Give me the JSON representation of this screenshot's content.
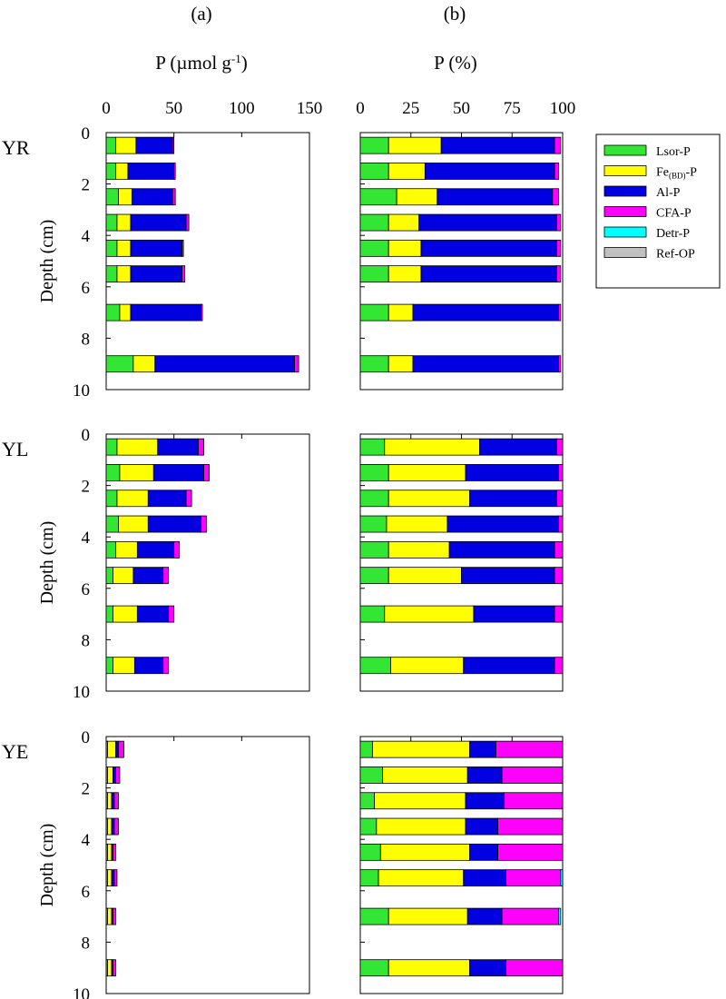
{
  "figure": {
    "panel_a_label": "(a)",
    "panel_b_label": "(b)",
    "title_a": "P (µmol g-1)",
    "title_a_main": "P (",
    "title_a_unit": "µmol g",
    "title_a_exp": "-1",
    "title_a_close": ")",
    "title_b": "P (%)",
    "depth_label": "Depth (cm)",
    "legend_labels": [
      "Lsor-P",
      "Fe(BD)-P",
      "Al-P",
      "CFA-P",
      "Detr-P",
      "Ref-OP"
    ],
    "legend_fe_main": "Fe",
    "legend_fe_sub": "(BD)",
    "legend_fe_tail": "-P"
  },
  "chart_data": {
    "type": "bar",
    "orientation": "horizontal-stacked",
    "fractions": [
      {
        "name": "Lsor-P",
        "color": "#33e633"
      },
      {
        "name": "Fe(BD)-P",
        "color": "#ffff00"
      },
      {
        "name": "Al-P",
        "color": "#0000e0"
      },
      {
        "name": "CFA-P",
        "color": "#ff00ff"
      },
      {
        "name": "Detr-P",
        "color": "#00ffff"
      },
      {
        "name": "Ref-OP",
        "color": "#c0c0c0"
      }
    ],
    "axes": {
      "absolute": {
        "xlim": [
          0,
          150
        ],
        "ticks": [
          "0",
          "50",
          "100",
          "150"
        ],
        "tick_values": [
          0,
          50,
          100,
          150
        ]
      },
      "percent": {
        "xlim": [
          0,
          100
        ],
        "ticks": [
          "0",
          "25",
          "50",
          "75",
          "100"
        ],
        "tick_values": [
          0,
          25,
          50,
          75,
          100
        ]
      },
      "depth": {
        "ylim": [
          0,
          10
        ],
        "ticks": [
          "0",
          "2",
          "4",
          "6",
          "8",
          "10"
        ],
        "tick_values": [
          0,
          2,
          4,
          6,
          8,
          10
        ]
      }
    },
    "sites": [
      {
        "name": "YR",
        "depths": [
          0.5,
          1.5,
          2.5,
          3.5,
          4.5,
          5.5,
          7,
          9
        ],
        "absolute": [
          [
            7,
            15,
            27,
            1,
            0,
            0
          ],
          [
            7,
            9,
            34,
            1,
            0,
            0
          ],
          [
            9,
            10,
            30,
            2,
            0,
            0
          ],
          [
            8,
            10,
            41,
            2,
            0,
            0
          ],
          [
            8,
            10,
            38,
            1,
            0,
            0
          ],
          [
            8,
            10,
            38,
            2,
            0,
            0
          ],
          [
            10,
            8,
            52,
            1,
            0,
            0
          ],
          [
            20,
            16,
            103,
            3,
            0,
            0
          ]
        ],
        "percent": [
          [
            14,
            26,
            56,
            3,
            0,
            0
          ],
          [
            14,
            18,
            64,
            2,
            0,
            0
          ],
          [
            18,
            20,
            57,
            3,
            0,
            0
          ],
          [
            14,
            15,
            68,
            2,
            0,
            0
          ],
          [
            14,
            16,
            67,
            2,
            0,
            0
          ],
          [
            14,
            16,
            67,
            2,
            0,
            0
          ],
          [
            14,
            12,
            72,
            1,
            0,
            0
          ],
          [
            14,
            12,
            72,
            1,
            0,
            0
          ]
        ]
      },
      {
        "name": "YL",
        "depths": [
          0.5,
          1.5,
          2.5,
          3.5,
          4.5,
          5.5,
          7,
          9
        ],
        "absolute": [
          [
            8,
            30,
            30,
            4,
            0,
            0
          ],
          [
            10,
            25,
            37,
            4,
            0,
            0
          ],
          [
            8,
            23,
            28,
            4,
            0,
            0
          ],
          [
            9,
            22,
            39,
            4,
            0,
            0
          ],
          [
            7,
            16,
            27,
            4,
            0,
            0
          ],
          [
            5,
            15,
            22,
            4,
            0,
            0
          ],
          [
            5,
            18,
            23,
            4,
            0,
            0
          ],
          [
            5,
            16,
            21,
            4,
            0,
            0
          ]
        ],
        "percent": [
          [
            12,
            47,
            38,
            3,
            0,
            0
          ],
          [
            14,
            38,
            46,
            2,
            0,
            0
          ],
          [
            14,
            40,
            43,
            3,
            0,
            0
          ],
          [
            13,
            30,
            55,
            2,
            0,
            0
          ],
          [
            14,
            30,
            52,
            4,
            0,
            0
          ],
          [
            14,
            36,
            46,
            4,
            0,
            0
          ],
          [
            12,
            44,
            40,
            4,
            0,
            0
          ],
          [
            15,
            36,
            45,
            4,
            0,
            0
          ]
        ]
      },
      {
        "name": "YE",
        "depths": [
          0.5,
          1.5,
          2.5,
          3.5,
          4.5,
          5.5,
          7,
          9
        ],
        "absolute": [
          [
            1,
            6,
            2,
            4,
            0,
            0
          ],
          [
            1,
            4,
            2,
            3,
            0,
            0
          ],
          [
            1,
            3,
            2,
            3,
            0,
            0
          ],
          [
            1,
            3,
            2,
            3,
            0,
            0
          ],
          [
            1,
            3,
            1,
            2,
            0,
            0
          ],
          [
            1,
            3,
            2,
            2,
            0,
            0
          ],
          [
            1,
            3,
            1,
            2,
            0,
            0
          ],
          [
            1,
            3,
            1,
            2,
            0,
            0
          ]
        ],
        "percent": [
          [
            6,
            48,
            13,
            33,
            0,
            0
          ],
          [
            11,
            42,
            17,
            30,
            0,
            0
          ],
          [
            7,
            45,
            19,
            29,
            0,
            0
          ],
          [
            8,
            44,
            16,
            32,
            0,
            0
          ],
          [
            10,
            44,
            14,
            32,
            0,
            0
          ],
          [
            9,
            42,
            21,
            27,
            1,
            0
          ],
          [
            14,
            39,
            17,
            28,
            1,
            0
          ],
          [
            14,
            40,
            18,
            28,
            0,
            0
          ]
        ]
      }
    ]
  }
}
